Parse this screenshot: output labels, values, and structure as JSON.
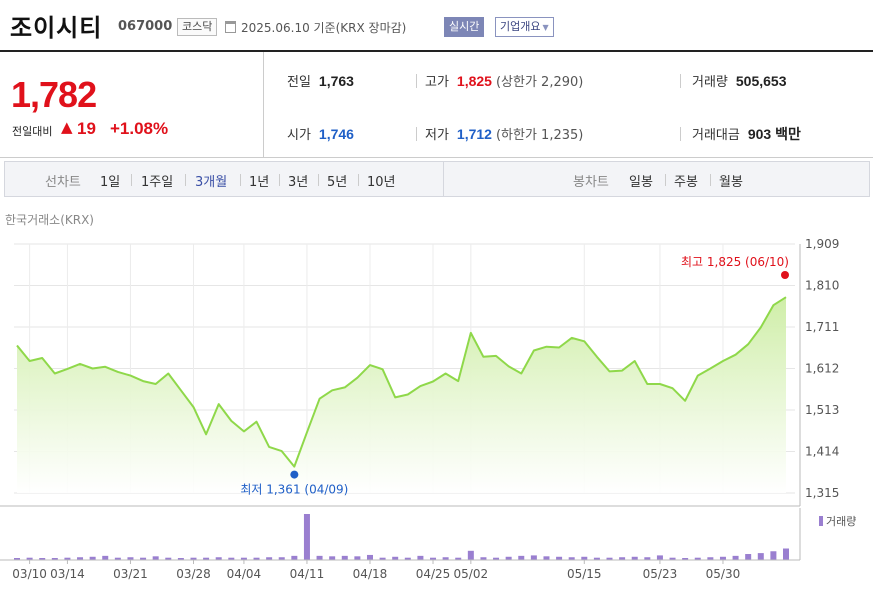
{
  "header": {
    "name": "조이시티",
    "code": "067000",
    "market": "코스닥",
    "date": "2025.06.10 기준(KRX 장마감)",
    "realtime": "실시간",
    "company_info": "기업개요"
  },
  "summary": {
    "price": "1,782",
    "change_label": "전일대비",
    "change_arrow": "▲",
    "change": "19",
    "change_pct": "+1.08%",
    "prev_close_label": "전일",
    "prev_close": "1,763",
    "high_label": "고가",
    "high": "1,825",
    "upper_limit": "(상한가 2,290)",
    "volume_label": "거래량",
    "volume": "505,653",
    "open_label": "시가",
    "open": "1,746",
    "low_label": "저가",
    "low": "1,712",
    "lower_limit": "(하한가 1,235)",
    "turnover_label": "거래대금",
    "turnover": "903 백만"
  },
  "period_bar": {
    "line_label": "선차트",
    "line_periods": [
      "1일",
      "1주일",
      "3개월",
      "1년",
      "3년",
      "5년",
      "10년"
    ],
    "active": "3개월",
    "candle_label": "봉차트",
    "candle_periods": [
      "일봉",
      "주봉",
      "월봉"
    ]
  },
  "exchange": "한국거래소(KRX)",
  "colors": {
    "up": "#e0111b",
    "down": "#1f5fc7",
    "line": "#8fd84a",
    "fill_top": "#cfeea8",
    "volume": "#9a7fd0"
  },
  "chart_data": {
    "type": "area",
    "y_ticks": [
      "1,909",
      "1,810",
      "1,711",
      "1,612",
      "1,513",
      "1,414",
      "1,315"
    ],
    "ylim": [
      1315,
      1909
    ],
    "x_ticks": [
      "03/10",
      "03/14",
      "03/21",
      "03/28",
      "04/04",
      "04/11",
      "04/18",
      "04/25",
      "05/02",
      "05/15",
      "05/23",
      "05/30"
    ],
    "high_annotation": "최고 1,825 (06/10)",
    "low_annotation": "최저 1,361 (04/09)",
    "volume_legend": "거래량",
    "grid": true,
    "price": [
      1667,
      1630,
      1637,
      1600,
      1611,
      1623,
      1612,
      1616,
      1604,
      1595,
      1582,
      1575,
      1600,
      1560,
      1520,
      1455,
      1527,
      1487,
      1462,
      1485,
      1425,
      1415,
      1378,
      1460,
      1540,
      1560,
      1567,
      1590,
      1620,
      1610,
      1543,
      1550,
      1570,
      1581,
      1600,
      1582,
      1697,
      1640,
      1642,
      1617,
      1600,
      1655,
      1664,
      1662,
      1685,
      1677,
      1640,
      1605,
      1607,
      1630,
      1575,
      1575,
      1565,
      1535,
      1595,
      1612,
      1630,
      1645,
      1670,
      1710,
      1763,
      1782
    ],
    "volume_rel": [
      0.04,
      0.05,
      0.04,
      0.04,
      0.05,
      0.06,
      0.07,
      0.09,
      0.05,
      0.06,
      0.05,
      0.08,
      0.05,
      0.04,
      0.05,
      0.05,
      0.06,
      0.05,
      0.05,
      0.05,
      0.06,
      0.06,
      0.09,
      1.0,
      0.09,
      0.08,
      0.09,
      0.08,
      0.11,
      0.05,
      0.07,
      0.05,
      0.09,
      0.05,
      0.06,
      0.05,
      0.2,
      0.06,
      0.05,
      0.07,
      0.09,
      0.1,
      0.08,
      0.07,
      0.06,
      0.07,
      0.05,
      0.05,
      0.06,
      0.07,
      0.06,
      0.1,
      0.05,
      0.04,
      0.05,
      0.06,
      0.07,
      0.09,
      0.13,
      0.15,
      0.19,
      0.25
    ]
  }
}
